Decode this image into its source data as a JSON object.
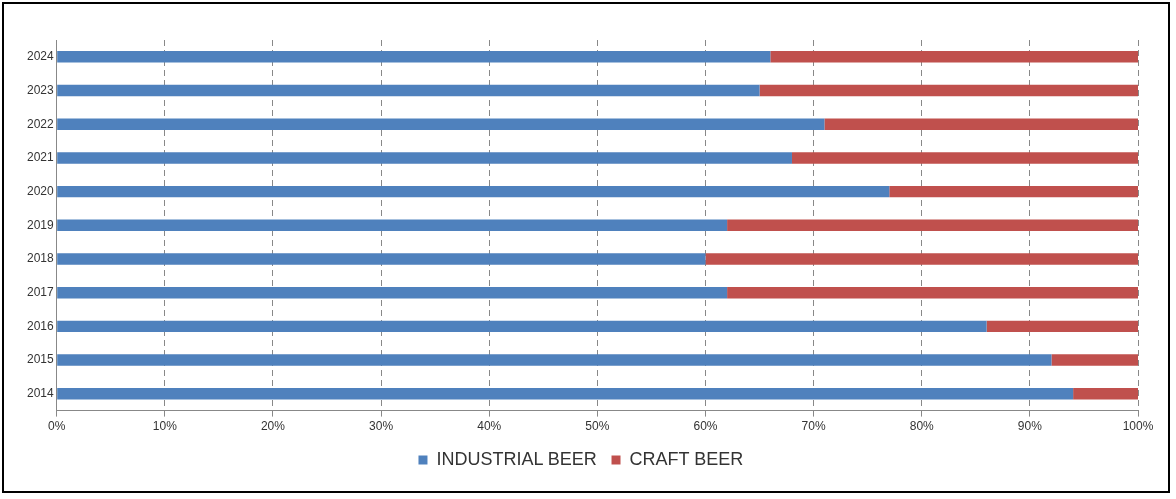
{
  "chart_data": {
    "type": "bar",
    "orientation": "horizontal",
    "stacked": true,
    "categories": [
      "2024",
      "2023",
      "2022",
      "2021",
      "2020",
      "2019",
      "2018",
      "2017",
      "2016",
      "2015",
      "2014"
    ],
    "series": [
      {
        "name": "INDUSTRIAL BEER",
        "color": "#4f81bd",
        "values": [
          66,
          65,
          71,
          68,
          77,
          62,
          60,
          62,
          86,
          92,
          94
        ]
      },
      {
        "name": "CRAFT BEER",
        "color": "#c0504d",
        "values": [
          34,
          35,
          29,
          32,
          23,
          38,
          40,
          38,
          14,
          8,
          6
        ]
      }
    ],
    "xlim": [
      0,
      100
    ],
    "xticks": [
      {
        "value": 0,
        "label": "0%"
      },
      {
        "value": 10,
        "label": "10%"
      },
      {
        "value": 20,
        "label": "20%"
      },
      {
        "value": 30,
        "label": "30%"
      },
      {
        "value": 40,
        "label": "40%"
      },
      {
        "value": 50,
        "label": "50%"
      },
      {
        "value": 60,
        "label": "60%"
      },
      {
        "value": 70,
        "label": "70%"
      },
      {
        "value": 80,
        "label": "80%"
      },
      {
        "value": 90,
        "label": "90%"
      },
      {
        "value": 100,
        "label": "100%"
      }
    ],
    "grid": "x",
    "legend": "bottom"
  }
}
